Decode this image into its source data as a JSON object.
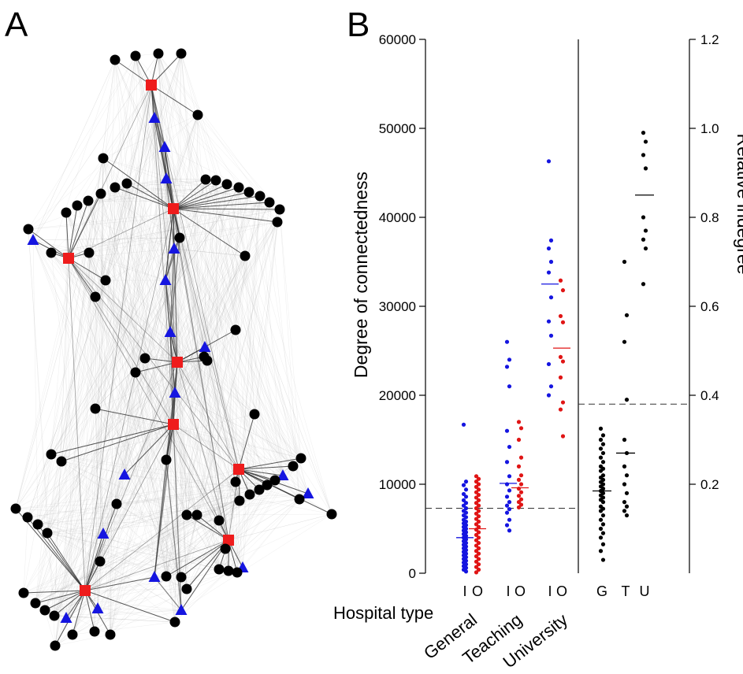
{
  "panel_labels": {
    "a": "A",
    "b": "B"
  },
  "colors": {
    "hub": "#ee1c1c",
    "intermediate": "#1515e0",
    "peripheral": "#000000",
    "in_series": "#1515e0",
    "out_series": "#e01515",
    "network_edge": "#888888"
  },
  "chart_data": [
    {
      "type": "network",
      "panel": "A",
      "node_kinds": [
        "square",
        "triangle",
        "circle"
      ],
      "node_count": 120,
      "notes": ""
    },
    {
      "type": "scatter",
      "panel": "B-left",
      "ylabel": "Degree of connectedness",
      "xlabel": "Hospital type",
      "ylim": [
        0,
        60000
      ],
      "y_ticks": [
        0,
        10000,
        20000,
        30000,
        40000,
        50000,
        60000
      ],
      "categories": [
        "General",
        "Teaching",
        "University"
      ],
      "sub_ticks": [
        "I",
        "O"
      ],
      "threshold": 7300,
      "series": [
        {
          "name": "I",
          "group": "General",
          "color": "#1515e0",
          "median": 4000,
          "values": [
            16700,
            10300,
            9900,
            9400,
            8900,
            8600,
            8200,
            7900,
            7600,
            7300,
            7000,
            6800,
            6500,
            6300,
            6000,
            5800,
            5600,
            5400,
            5200,
            5000,
            4800,
            4600,
            4400,
            4200,
            4000,
            3800,
            3600,
            3400,
            3200,
            3000,
            2800,
            2600,
            2400,
            2200,
            2000,
            1800,
            1600,
            1400,
            1200,
            1000,
            800,
            600,
            400,
            200
          ]
        },
        {
          "name": "O",
          "group": "General",
          "color": "#e01515",
          "median": 5000,
          "values": [
            10900,
            10600,
            10300,
            10000,
            9700,
            9400,
            9100,
            8800,
            8500,
            8200,
            7900,
            7600,
            7300,
            7000,
            6700,
            6400,
            6100,
            5800,
            5500,
            5200,
            4900,
            4600,
            4300,
            4000,
            3700,
            3400,
            3100,
            2800,
            2500,
            2200,
            1900,
            1600,
            1300,
            1000,
            700,
            400,
            100
          ]
        },
        {
          "name": "I",
          "group": "Teaching",
          "color": "#1515e0",
          "median": 10100,
          "values": [
            26000,
            24000,
            23200,
            21000,
            16000,
            14200,
            12500,
            10900,
            10000,
            9300,
            8600,
            8000,
            7600,
            7200,
            6800,
            6000,
            5400,
            4800
          ]
        },
        {
          "name": "O",
          "group": "Teaching",
          "color": "#e01515",
          "median": 9600,
          "values": [
            17000,
            16300,
            15000,
            13000,
            12000,
            11000,
            10500,
            10000,
            9500,
            9100,
            8700,
            8300,
            8000,
            7700,
            7400
          ]
        },
        {
          "name": "I",
          "group": "University",
          "color": "#1515e0",
          "median": 32500,
          "values": [
            46300,
            37400,
            36500,
            35000,
            33800,
            31000,
            28300,
            26700,
            23500,
            21000,
            20000
          ]
        },
        {
          "name": "O",
          "group": "University",
          "color": "#e01515",
          "median": 25300,
          "values": [
            32900,
            31800,
            28900,
            28200,
            24300,
            23800,
            22000,
            19200,
            18400,
            15400
          ]
        }
      ]
    },
    {
      "type": "scatter",
      "panel": "B-right",
      "ylabel": "Relative indegree",
      "ylim": [
        0,
        1.2
      ],
      "y_ticks": [
        0.2,
        0.4,
        0.6,
        0.8,
        1.0,
        1.2
      ],
      "y_tick_labels": [
        "0.2",
        "0.4",
        "0.6",
        "0.8",
        "1.0",
        "1.2"
      ],
      "categories": [
        "G",
        "T",
        "U"
      ],
      "threshold": 0.38,
      "series": [
        {
          "name": "G",
          "color": "#000000",
          "median": 0.185,
          "values": [
            0.325,
            0.31,
            0.3,
            0.29,
            0.28,
            0.27,
            0.26,
            0.25,
            0.24,
            0.235,
            0.23,
            0.22,
            0.215,
            0.21,
            0.205,
            0.2,
            0.195,
            0.19,
            0.185,
            0.18,
            0.175,
            0.17,
            0.165,
            0.16,
            0.15,
            0.145,
            0.14,
            0.13,
            0.12,
            0.11,
            0.1,
            0.09,
            0.08,
            0.065,
            0.05,
            0.03
          ]
        },
        {
          "name": "T",
          "color": "#000000",
          "median": 0.27,
          "values": [
            0.7,
            0.58,
            0.52,
            0.39,
            0.3,
            0.27,
            0.24,
            0.22,
            0.2,
            0.18,
            0.16,
            0.15,
            0.14,
            0.13
          ]
        },
        {
          "name": "U",
          "color": "#000000",
          "median": 0.85,
          "values": [
            0.99,
            0.97,
            0.94,
            0.91,
            0.8,
            0.77,
            0.75,
            0.73,
            0.65
          ]
        }
      ]
    }
  ]
}
